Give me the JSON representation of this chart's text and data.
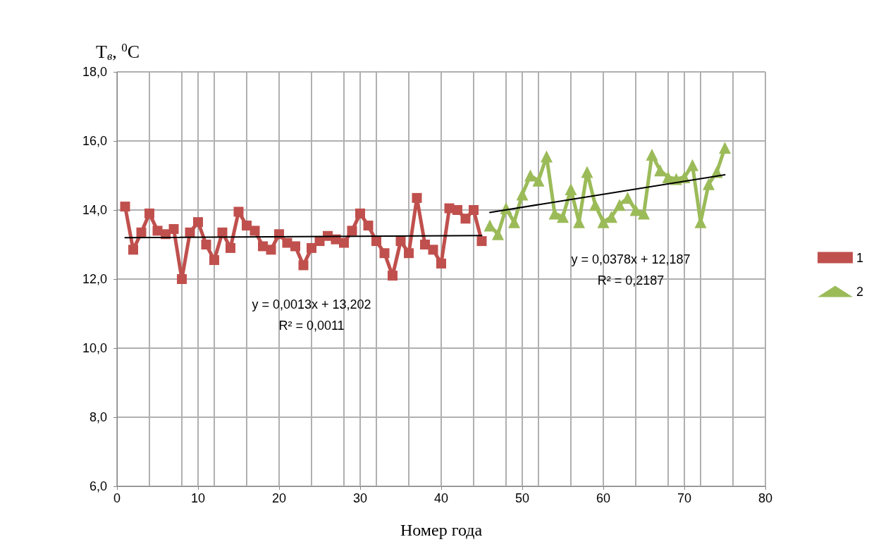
{
  "chart_data": {
    "type": "line",
    "ylabel": "T$_{в}$, $^{0}$C",
    "xlabel": "Номер года",
    "xlim": [
      0,
      80
    ],
    "xticks": [
      0,
      10,
      20,
      30,
      40,
      50,
      60,
      70,
      80
    ],
    "ylim": [
      6,
      18
    ],
    "yticks": [
      {
        "value": 6,
        "label": "6,0"
      },
      {
        "value": 8,
        "label": "8,0"
      },
      {
        "value": 10,
        "label": "10,0"
      },
      {
        "value": 12,
        "label": "12,0"
      },
      {
        "value": 14,
        "label": "14,0"
      },
      {
        "value": 16,
        "label": "16,0"
      },
      {
        "value": 18,
        "label": "18,0"
      }
    ],
    "grid": true,
    "legend": "right",
    "series": [
      {
        "name": "1",
        "color": "#c0504d",
        "marker": "square",
        "x": [
          1,
          2,
          3,
          4,
          5,
          6,
          7,
          8,
          9,
          10,
          11,
          12,
          13,
          14,
          15,
          16,
          17,
          18,
          19,
          20,
          21,
          22,
          23,
          24,
          25,
          26,
          27,
          28,
          29,
          30,
          31,
          32,
          33,
          34,
          35,
          36,
          37,
          38,
          39,
          40,
          41,
          42,
          43,
          44,
          45
        ],
        "values": [
          14.1,
          12.85,
          13.35,
          13.9,
          13.4,
          13.3,
          13.45,
          12.0,
          13.35,
          13.65,
          13.0,
          12.55,
          13.35,
          12.9,
          13.95,
          13.55,
          13.4,
          12.95,
          12.85,
          13.3,
          13.05,
          12.95,
          12.4,
          12.9,
          13.1,
          13.25,
          13.15,
          13.05,
          13.4,
          13.9,
          13.55,
          13.1,
          12.75,
          12.1,
          13.1,
          12.75,
          14.35,
          13.0,
          12.85,
          12.45,
          14.05,
          14.0,
          13.75,
          14.0,
          13.1
        ]
      },
      {
        "name": "2",
        "color": "#9bbb59",
        "marker": "triangle",
        "x": [
          46,
          47,
          48,
          49,
          50,
          51,
          52,
          53,
          54,
          55,
          56,
          57,
          58,
          59,
          60,
          61,
          62,
          63,
          64,
          65,
          66,
          67,
          68,
          69,
          70,
          71,
          72,
          73,
          74,
          75
        ],
        "values": [
          13.55,
          13.3,
          14.05,
          13.65,
          14.45,
          15.0,
          14.85,
          15.55,
          13.9,
          13.8,
          14.6,
          13.65,
          15.1,
          14.15,
          13.65,
          13.8,
          14.15,
          14.35,
          14.0,
          13.9,
          15.6,
          15.15,
          14.95,
          14.9,
          14.95,
          15.3,
          13.65,
          14.75,
          15.1,
          15.8
        ]
      },
      {
        "type": "line",
        "color": "#000000",
        "marker": "none",
        "x": [
          1,
          45
        ],
        "values": [
          13.2,
          13.26
        ]
      },
      {
        "type": "line",
        "color": "#000000",
        "marker": "none",
        "x": [
          46,
          75
        ],
        "values": [
          13.93,
          15.02
        ]
      }
    ],
    "annotations": [
      "y = 0,0013x + 13,202",
      "R² = 0,0011",
      "y = 0,0378x + 12,187",
      "R² = 0,2187"
    ]
  }
}
